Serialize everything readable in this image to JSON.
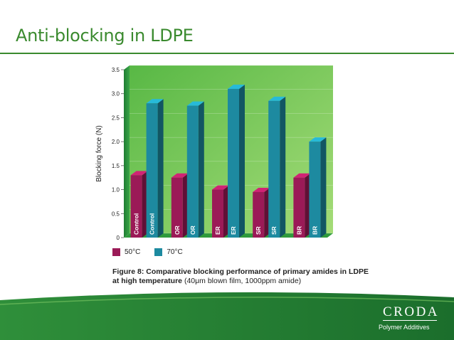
{
  "slide": {
    "title": "Anti-blocking in LDPE"
  },
  "chart_data": {
    "type": "bar",
    "ylabel": "Blocking force (N)",
    "ylim": [
      0,
      3.5
    ],
    "yticks": [
      "0",
      "0.5",
      "1.0",
      "1.5",
      "2.0",
      "2.5",
      "3.0",
      "3.5"
    ],
    "categories": [
      "Control",
      "OR",
      "ER",
      "SR",
      "BR"
    ],
    "series": [
      {
        "name": "50°C",
        "color": "#9b1a57",
        "values": [
          1.3,
          1.25,
          1.0,
          0.95,
          1.25
        ]
      },
      {
        "name": "70°C",
        "color": "#1d8aa0",
        "values": [
          2.8,
          2.75,
          3.1,
          2.85,
          2.0
        ]
      }
    ],
    "caption_bold": "Figure 8: Comparative blocking performance of primary amides in LDPE at high temperature",
    "caption_rest": "(40μm blown film, 1000ppm amide)",
    "colors": {
      "wall": "#6cc24a",
      "floor": "#2f9a3c",
      "title": "#3a8a2e"
    }
  },
  "legend": {
    "s1": "50°C",
    "s2": "70°C"
  },
  "brand": {
    "name": "CRODA",
    "subtitle": "Polymer Additives"
  }
}
